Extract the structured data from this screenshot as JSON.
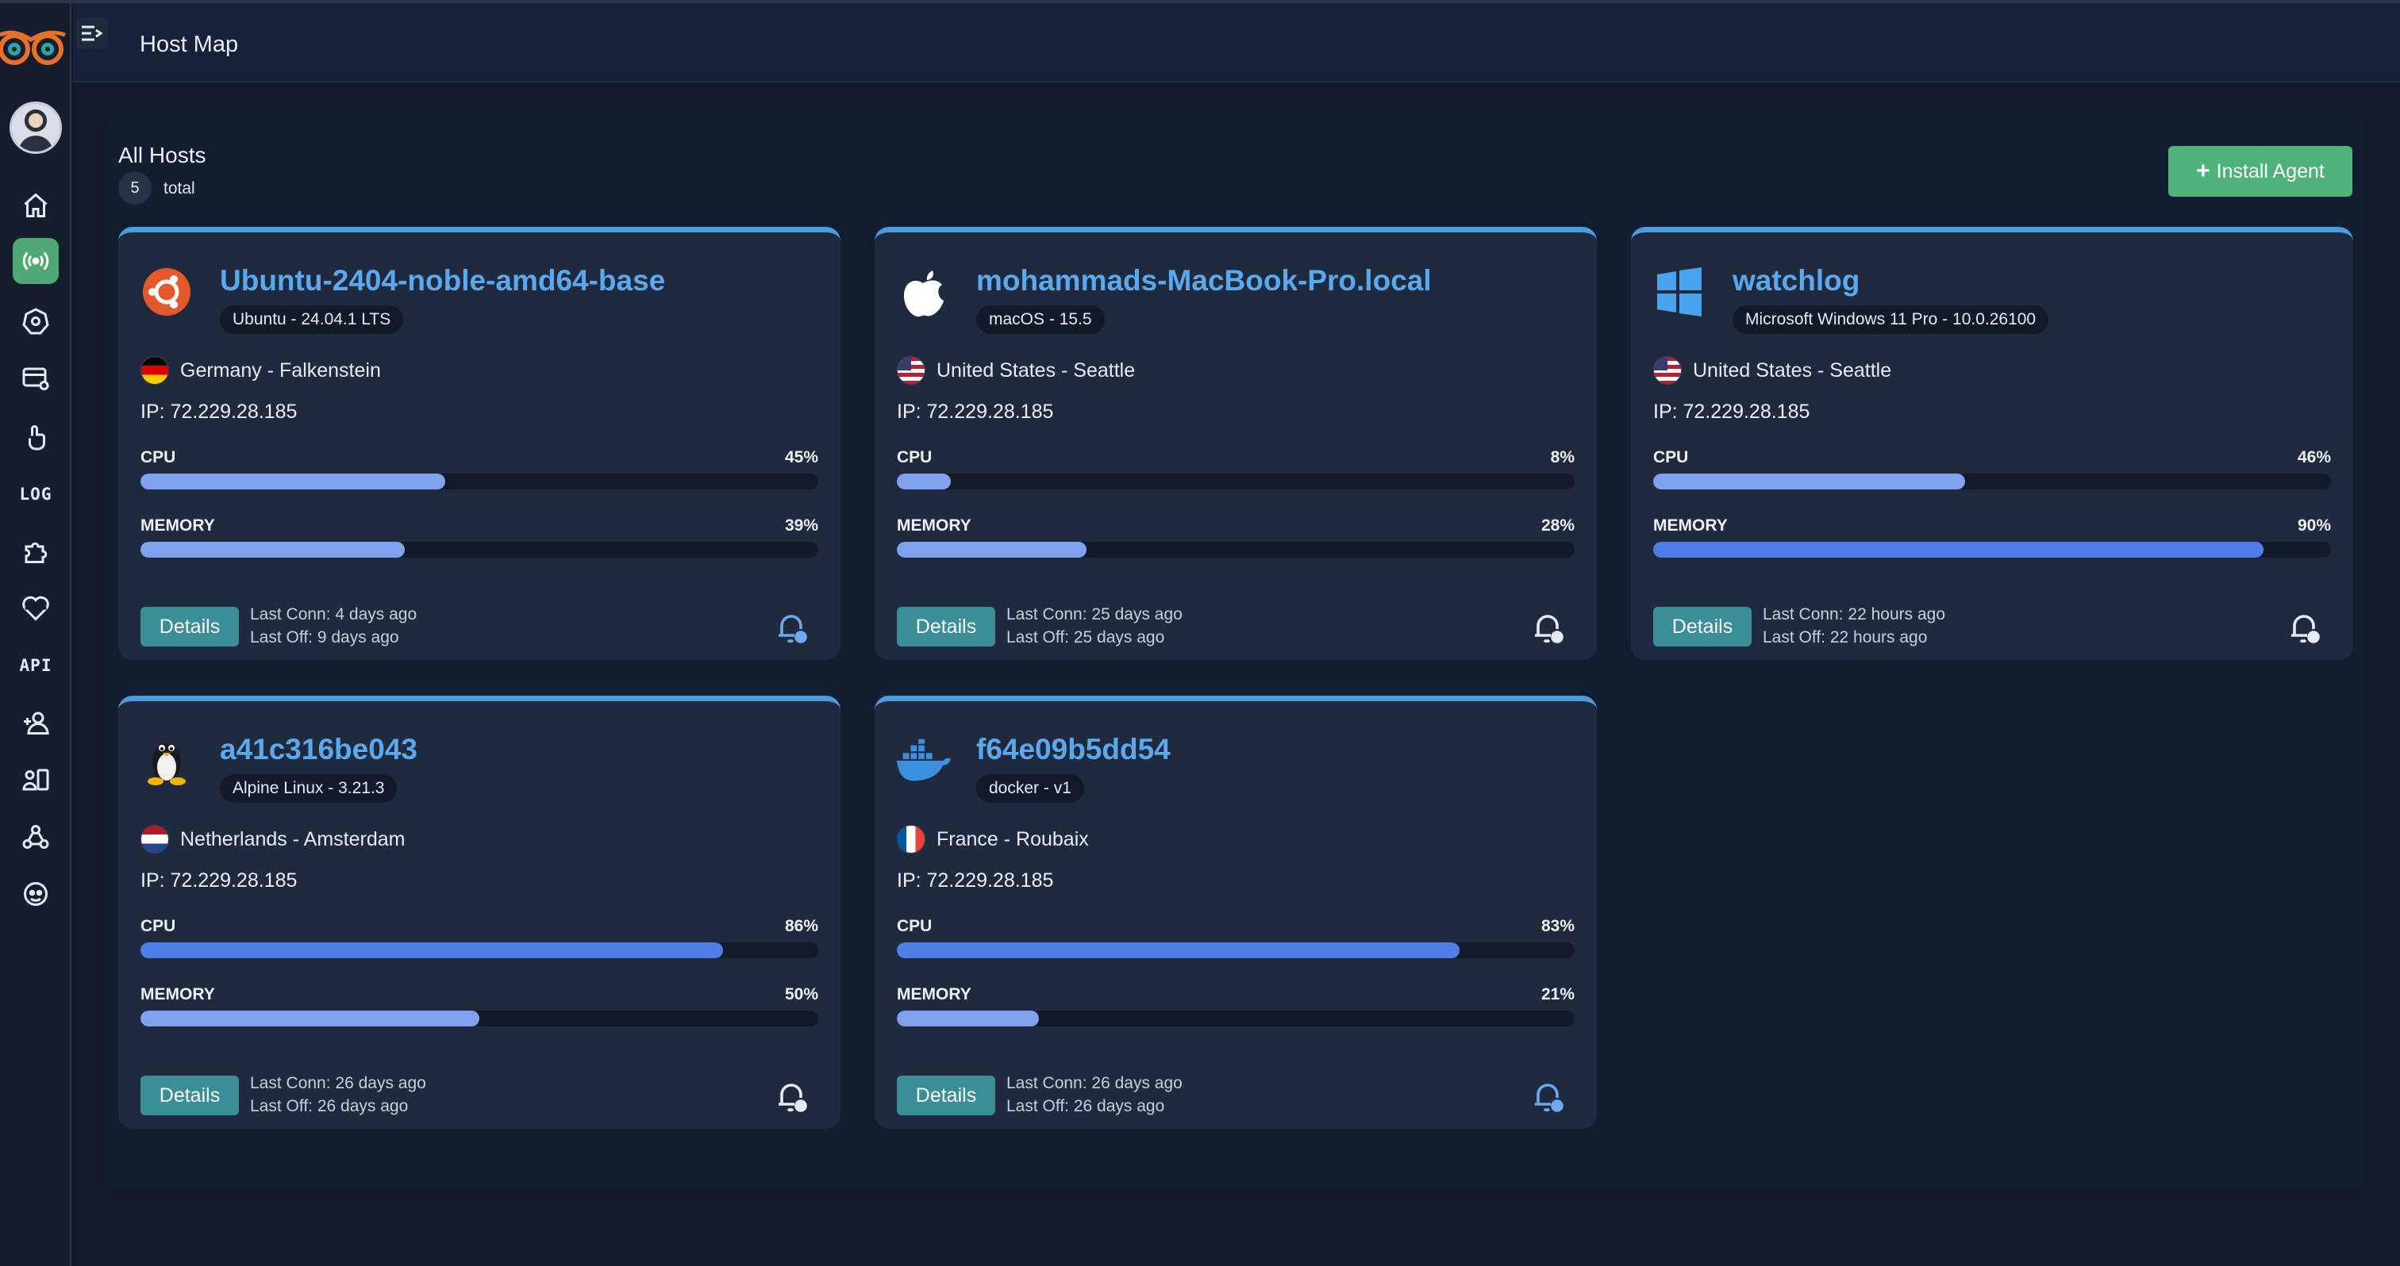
{
  "header": {
    "title": "Host Map"
  },
  "sidebar": {
    "items": [
      {
        "icon": "home-icon"
      },
      {
        "icon": "broadcast-icon",
        "active": true
      },
      {
        "icon": "kubernetes-icon"
      },
      {
        "icon": "server-settings-icon"
      },
      {
        "icon": "touch-icon"
      },
      {
        "icon": "log-icon",
        "label": "LOG"
      },
      {
        "icon": "puzzle-icon"
      },
      {
        "icon": "heartbeat-icon"
      },
      {
        "icon": "api-icon",
        "label": "API"
      },
      {
        "icon": "add-user-icon"
      },
      {
        "icon": "user-directory-icon"
      },
      {
        "icon": "webhook-icon"
      },
      {
        "icon": "support-icon"
      }
    ]
  },
  "hosts": {
    "title": "All Hosts",
    "count": "5",
    "count_label": "total",
    "install_label": "Install Agent",
    "cpu_label": "CPU",
    "memory_label": "MEMORY",
    "details_label": "Details",
    "items": [
      {
        "name": "Ubuntu-2404-noble-amd64-base",
        "os": "Ubuntu - 24.04.1 LTS",
        "os_icon": "ubuntu-icon",
        "location": "Germany - Falkenstein",
        "flag": "germany-flag-icon",
        "ip": "IP: 72.229.28.185",
        "cpu": "45%",
        "cpu_value": 45,
        "memory": "39%",
        "memory_value": 39,
        "last_conn": "Last Conn: 4 days ago",
        "last_off": "Last Off: 9 days ago"
      },
      {
        "name": "mohammads-MacBook-Pro.local",
        "os": "macOS - 15.5",
        "os_icon": "apple-icon",
        "location": "United States - Seattle",
        "flag": "us-flag-icon",
        "ip": "IP: 72.229.28.185",
        "cpu": "8%",
        "cpu_value": 8,
        "memory": "28%",
        "memory_value": 28,
        "last_conn": "Last Conn: 25 days ago",
        "last_off": "Last Off: 25 days ago"
      },
      {
        "name": "watchlog",
        "os": "Microsoft Windows 11 Pro - 10.0.26100",
        "os_icon": "windows-icon",
        "location": "United States - Seattle",
        "flag": "us-flag-icon",
        "ip": "IP: 72.229.28.185",
        "cpu": "46%",
        "cpu_value": 46,
        "memory": "90%",
        "memory_value": 90,
        "last_conn": "Last Conn: 22 hours ago",
        "last_off": "Last Off: 22 hours ago"
      },
      {
        "name": "a41c316be043",
        "os": "Alpine Linux - 3.21.3",
        "os_icon": "linux-tux-icon",
        "location": "Netherlands - Amsterdam",
        "flag": "netherlands-flag-icon",
        "ip": "IP: 72.229.28.185",
        "cpu": "86%",
        "cpu_value": 86,
        "memory": "50%",
        "memory_value": 50,
        "last_conn": "Last Conn: 26 days ago",
        "last_off": "Last Off: 26 days ago"
      },
      {
        "name": "f64e09b5dd54",
        "os": "docker - v1",
        "os_icon": "docker-icon",
        "location": "France - Roubaix",
        "flag": "france-flag-icon",
        "ip": "IP: 72.229.28.185",
        "cpu": "83%",
        "cpu_value": 83,
        "memory": "21%",
        "memory_value": 21,
        "last_conn": "Last Conn: 26 days ago",
        "last_off": "Last Off: 26 days ago"
      }
    ]
  },
  "colors": {
    "accent": "#5aa8ee",
    "install": "#4fb27a",
    "details": "#3a8e98",
    "bar_light": "#7ea2ee",
    "bar_dark": "#4e7ee6"
  }
}
